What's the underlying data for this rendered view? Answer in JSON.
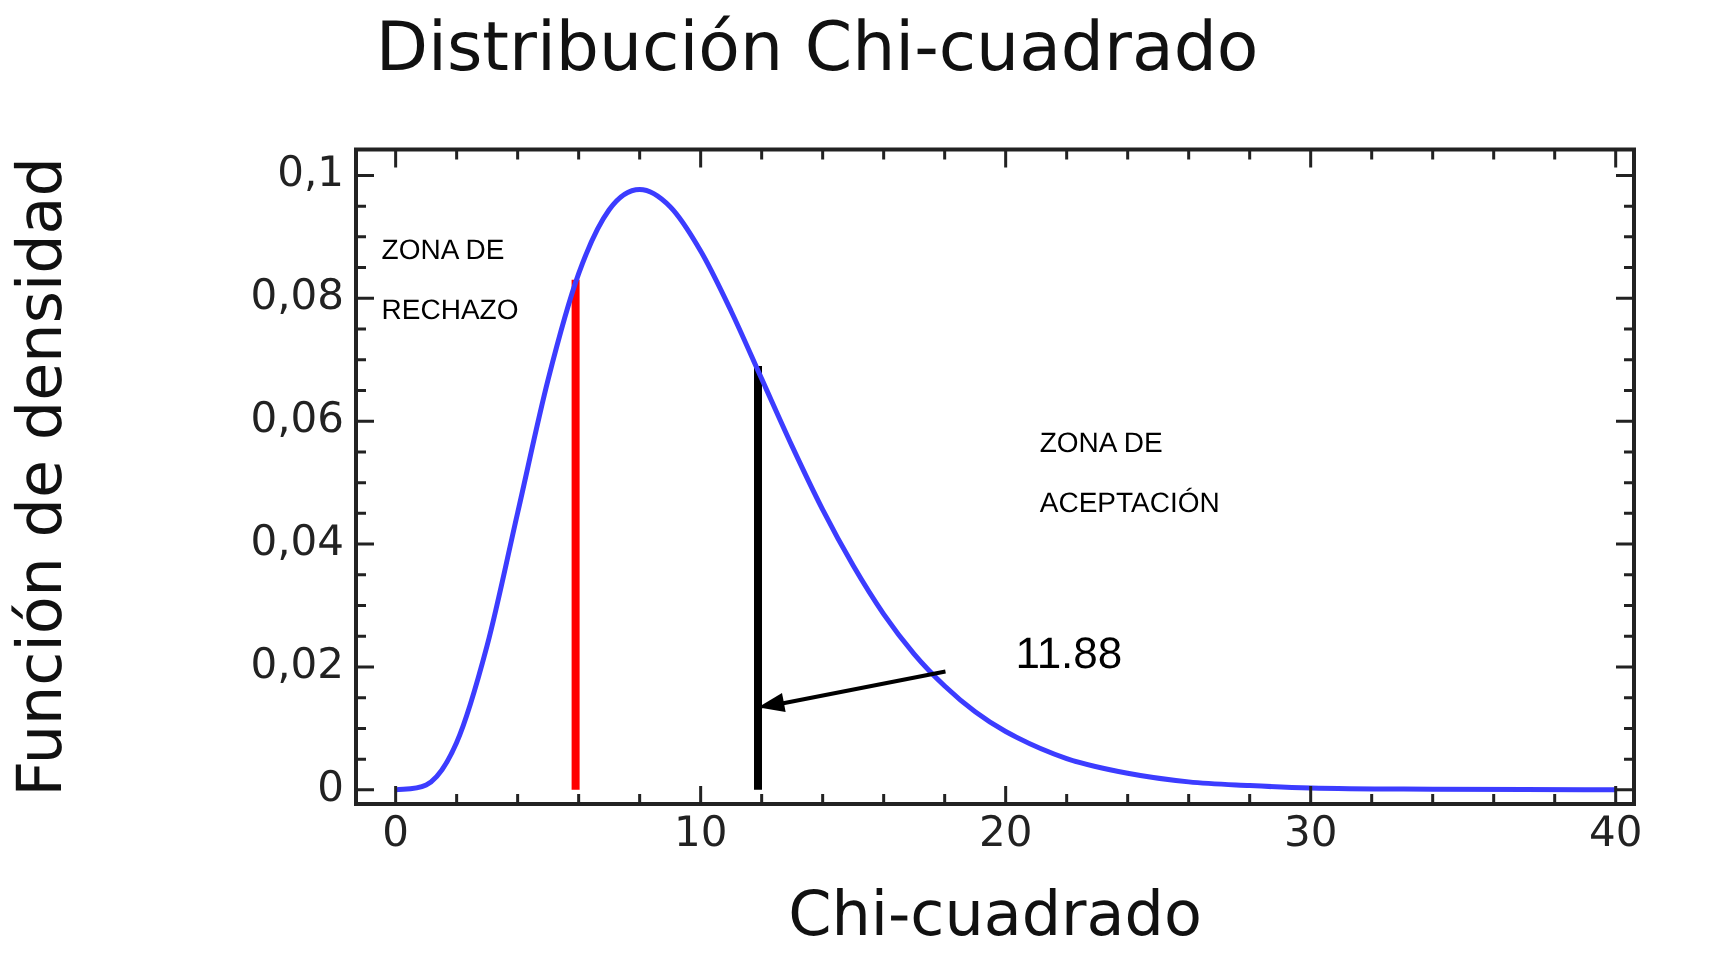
{
  "chart_data": {
    "type": "line",
    "title": "Distribución Chi-cuadrado",
    "xlabel": "Chi-cuadrado",
    "ylabel": "Función de densidad",
    "xlim": [
      -1.3,
      40.6
    ],
    "ylim": [
      -0.0023,
      0.1042
    ],
    "xticks": [
      0,
      {
        "value": 2,
        "label": null
      },
      {
        "value": 4,
        "label": null
      },
      {
        "value": 6,
        "label": null
      },
      {
        "value": 8,
        "label": null
      },
      10,
      {
        "value": 12,
        "label": null
      },
      {
        "value": 14,
        "label": null
      },
      {
        "value": 16,
        "label": null
      },
      {
        "value": 18,
        "label": null
      },
      20,
      {
        "value": 22,
        "label": null
      },
      {
        "value": 24,
        "label": null
      },
      {
        "value": 26,
        "label": null
      },
      {
        "value": 28,
        "label": null
      },
      30,
      {
        "value": 32,
        "label": null
      },
      {
        "value": 34,
        "label": null
      },
      {
        "value": 36,
        "label": null
      },
      {
        "value": 38,
        "label": null
      },
      40
    ],
    "yticks": [
      0,
      {
        "value": 0.005,
        "label": null
      },
      {
        "value": 0.01,
        "label": null
      },
      {
        "value": 0.015,
        "label": null
      },
      {
        "value": 0.02,
        "label": "0,02"
      },
      {
        "value": 0.025,
        "label": null
      },
      {
        "value": 0.03,
        "label": null
      },
      {
        "value": 0.035,
        "label": null
      },
      {
        "value": 0.04,
        "label": "0,04"
      },
      {
        "value": 0.045,
        "label": null
      },
      {
        "value": 0.05,
        "label": null
      },
      {
        "value": 0.055,
        "label": null
      },
      {
        "value": 0.06,
        "label": "0,06"
      },
      {
        "value": 0.065,
        "label": null
      },
      {
        "value": 0.07,
        "label": null
      },
      {
        "value": 0.075,
        "label": null
      },
      {
        "value": 0.08,
        "label": "0,08"
      },
      {
        "value": 0.085,
        "label": null
      },
      {
        "value": 0.09,
        "label": null
      },
      {
        "value": 0.095,
        "label": null
      },
      {
        "value": 0.1,
        "label": "0,1"
      }
    ],
    "grid": false,
    "legend": false,
    "marker": "none",
    "line_style": "solid",
    "series": [
      {
        "color": "#3c3cff",
        "x": [
          0,
          1,
          2,
          3,
          4,
          5,
          6,
          7,
          8,
          9,
          10,
          11,
          12,
          13,
          14,
          15,
          16,
          17,
          18,
          19,
          20,
          22,
          24,
          26,
          28,
          30,
          34,
          40
        ],
        "values": [
          0,
          0.0008,
          0.0077,
          0.0235,
          0.0451,
          0.0668,
          0.084,
          0.0944,
          0.0977,
          0.0949,
          0.0877,
          0.0779,
          0.0669,
          0.0559,
          0.0456,
          0.0365,
          0.0286,
          0.0221,
          0.0169,
          0.0127,
          0.0095,
          0.0051,
          0.0027,
          0.0013,
          0.0007,
          0.0003,
          0.0001,
          0
        ]
      },
      {
        "color": "#ff0000",
        "x": [
          5.9,
          5.9
        ],
        "values": [
          0,
          0.083
        ]
      },
      {
        "color": "#000000",
        "x": [
          11.88,
          11.88
        ],
        "values": [
          0,
          0.069
        ]
      }
    ],
    "annotations": [
      "ZONA DE RECHAZO",
      "ZONA DE ACEPTACIÓN",
      "11.88"
    ]
  }
}
